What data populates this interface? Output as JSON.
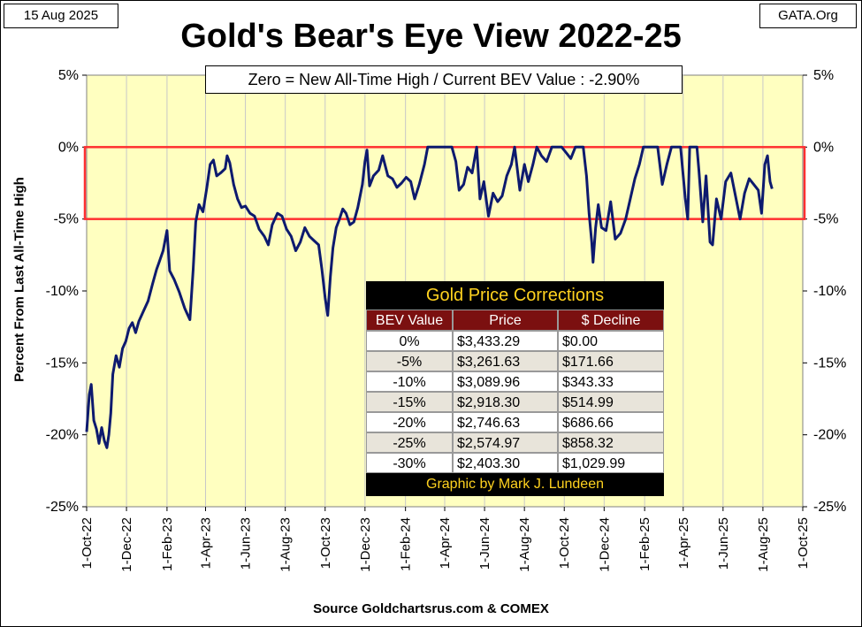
{
  "header": {
    "date": "15 Aug 2025",
    "source_site": "GATA.Org",
    "title": "Gold's Bear's Eye View 2022-25",
    "subtitle": "Zero = New All-Time High / Current  BEV Value : -2.90%"
  },
  "footer": {
    "source": "Source Goldchartsrus.com & COMEX"
  },
  "colors": {
    "plot_bg": "#FFFFC0",
    "line": "#0D1A6E",
    "band": "#FF3030",
    "table_head": "#7B1010",
    "table_text_gold": "#FFD21F"
  },
  "chart_data": {
    "type": "line",
    "title": "Gold's Bear's Eye View 2022-25",
    "ylabel": "Percent  From Last  All-Time  High",
    "xlabel": "",
    "ylim": [
      -25,
      5
    ],
    "yticks": [
      "5%",
      "0%",
      "-5%",
      "-10%",
      "-15%",
      "-20%",
      "-25%"
    ],
    "ytick_values": [
      5,
      0,
      -5,
      -10,
      -15,
      -20,
      -25
    ],
    "xticks": [
      "1-Oct-22",
      "1-Dec-22",
      "1-Feb-23",
      "1-Apr-23",
      "1-Jun-23",
      "1-Aug-23",
      "1-Oct-23",
      "1-Dec-23",
      "1-Feb-24",
      "1-Apr-24",
      "1-Jun-24",
      "1-Aug-24",
      "1-Oct-24",
      "1-Dec-24",
      "1-Feb-25",
      "1-Apr-25",
      "1-Jun-25",
      "1-Aug-25",
      "1-Oct-25"
    ],
    "xlim": [
      "2022-10-01",
      "2025-10-01"
    ],
    "highlight_band": [
      -5,
      0
    ],
    "grid": "vertical",
    "series": [
      {
        "points": [
          [
            "2022-10-01",
            -19.8
          ],
          [
            "2022-10-05",
            -17.2
          ],
          [
            "2022-10-08",
            -16.5
          ],
          [
            "2022-10-12",
            -19.0
          ],
          [
            "2022-10-16",
            -19.6
          ],
          [
            "2022-10-20",
            -20.6
          ],
          [
            "2022-10-24",
            -19.5
          ],
          [
            "2022-10-28",
            -20.4
          ],
          [
            "2022-11-01",
            -20.9
          ],
          [
            "2022-11-04",
            -20.0
          ],
          [
            "2022-11-07",
            -18.5
          ],
          [
            "2022-11-10",
            -15.8
          ],
          [
            "2022-11-15",
            -14.5
          ],
          [
            "2022-11-20",
            -15.3
          ],
          [
            "2022-11-25",
            -14.0
          ],
          [
            "2022-11-30",
            -13.5
          ],
          [
            "2022-12-05",
            -12.6
          ],
          [
            "2022-12-10",
            -12.2
          ],
          [
            "2022-12-15",
            -12.9
          ],
          [
            "2022-12-20",
            -12.1
          ],
          [
            "2022-12-27",
            -11.4
          ],
          [
            "2023-01-03",
            -10.7
          ],
          [
            "2023-01-10",
            -9.5
          ],
          [
            "2023-01-16",
            -8.5
          ],
          [
            "2023-01-20",
            -8.0
          ],
          [
            "2023-01-26",
            -7.2
          ],
          [
            "2023-02-01",
            -5.8
          ],
          [
            "2023-02-05",
            -8.6
          ],
          [
            "2023-02-12",
            -9.2
          ],
          [
            "2023-02-20",
            -10.1
          ],
          [
            "2023-02-28",
            -11.2
          ],
          [
            "2023-03-04",
            -11.6
          ],
          [
            "2023-03-08",
            -12.0
          ],
          [
            "2023-03-13",
            -8.5
          ],
          [
            "2023-03-17",
            -5.2
          ],
          [
            "2023-03-22",
            -4.0
          ],
          [
            "2023-03-28",
            -4.5
          ],
          [
            "2023-04-03",
            -2.8
          ],
          [
            "2023-04-08",
            -1.2
          ],
          [
            "2023-04-13",
            -0.9
          ],
          [
            "2023-04-18",
            -2.0
          ],
          [
            "2023-04-24",
            -1.8
          ],
          [
            "2023-05-01",
            -1.5
          ],
          [
            "2023-05-04",
            -0.6
          ],
          [
            "2023-05-08",
            -1.1
          ],
          [
            "2023-05-14",
            -2.6
          ],
          [
            "2023-05-20",
            -3.6
          ],
          [
            "2023-05-26",
            -4.2
          ],
          [
            "2023-06-01",
            -4.1
          ],
          [
            "2023-06-08",
            -4.6
          ],
          [
            "2023-06-15",
            -4.8
          ],
          [
            "2023-06-22",
            -5.7
          ],
          [
            "2023-06-30",
            -6.2
          ],
          [
            "2023-07-06",
            -6.8
          ],
          [
            "2023-07-12",
            -5.4
          ],
          [
            "2023-07-20",
            -4.6
          ],
          [
            "2023-07-27",
            -4.8
          ],
          [
            "2023-08-03",
            -5.7
          ],
          [
            "2023-08-10",
            -6.2
          ],
          [
            "2023-08-17",
            -7.2
          ],
          [
            "2023-08-24",
            -6.6
          ],
          [
            "2023-08-31",
            -5.6
          ],
          [
            "2023-09-07",
            -6.2
          ],
          [
            "2023-09-14",
            -6.5
          ],
          [
            "2023-09-21",
            -6.8
          ],
          [
            "2023-09-26",
            -8.5
          ],
          [
            "2023-10-01",
            -10.5
          ],
          [
            "2023-10-05",
            -11.7
          ],
          [
            "2023-10-09",
            -9.0
          ],
          [
            "2023-10-13",
            -7.0
          ],
          [
            "2023-10-18",
            -5.6
          ],
          [
            "2023-10-23",
            -5.0
          ],
          [
            "2023-10-28",
            -4.3
          ],
          [
            "2023-11-02",
            -4.6
          ],
          [
            "2023-11-08",
            -5.4
          ],
          [
            "2023-11-14",
            -5.2
          ],
          [
            "2023-11-20",
            -4.2
          ],
          [
            "2023-11-27",
            -2.6
          ],
          [
            "2023-12-01",
            -1.0
          ],
          [
            "2023-12-04",
            -0.2
          ],
          [
            "2023-12-08",
            -2.7
          ],
          [
            "2023-12-14",
            -2.0
          ],
          [
            "2023-12-22",
            -1.6
          ],
          [
            "2023-12-28",
            -0.6
          ],
          [
            "2024-01-05",
            -2.0
          ],
          [
            "2024-01-12",
            -2.2
          ],
          [
            "2024-01-19",
            -2.8
          ],
          [
            "2024-01-26",
            -2.5
          ],
          [
            "2024-02-02",
            -2.1
          ],
          [
            "2024-02-09",
            -2.4
          ],
          [
            "2024-02-15",
            -3.6
          ],
          [
            "2024-02-22",
            -2.6
          ],
          [
            "2024-03-01",
            -1.2
          ],
          [
            "2024-03-06",
            0.0
          ],
          [
            "2024-03-12",
            0.0
          ],
          [
            "2024-03-20",
            0.0
          ],
          [
            "2024-03-28",
            0.0
          ],
          [
            "2024-04-05",
            0.0
          ],
          [
            "2024-04-12",
            0.0
          ],
          [
            "2024-04-18",
            -1.0
          ],
          [
            "2024-04-23",
            -3.0
          ],
          [
            "2024-04-30",
            -2.6
          ],
          [
            "2024-05-06",
            -1.4
          ],
          [
            "2024-05-13",
            -1.8
          ],
          [
            "2024-05-20",
            0.0
          ],
          [
            "2024-05-25",
            -3.6
          ],
          [
            "2024-05-31",
            -2.4
          ],
          [
            "2024-06-07",
            -4.8
          ],
          [
            "2024-06-14",
            -3.2
          ],
          [
            "2024-06-21",
            -3.8
          ],
          [
            "2024-06-28",
            -3.4
          ],
          [
            "2024-07-05",
            -2.0
          ],
          [
            "2024-07-12",
            -1.2
          ],
          [
            "2024-07-17",
            0.0
          ],
          [
            "2024-07-25",
            -3.0
          ],
          [
            "2024-08-01",
            -1.2
          ],
          [
            "2024-08-07",
            -2.4
          ],
          [
            "2024-08-14",
            -1.2
          ],
          [
            "2024-08-20",
            0.0
          ],
          [
            "2024-08-27",
            -0.6
          ],
          [
            "2024-09-04",
            -1.0
          ],
          [
            "2024-09-12",
            0.0
          ],
          [
            "2024-09-20",
            0.0
          ],
          [
            "2024-09-27",
            0.0
          ],
          [
            "2024-10-04",
            -0.4
          ],
          [
            "2024-10-11",
            -0.8
          ],
          [
            "2024-10-18",
            0.0
          ],
          [
            "2024-10-25",
            0.0
          ],
          [
            "2024-10-30",
            0.0
          ],
          [
            "2024-11-04",
            -2.0
          ],
          [
            "2024-11-08",
            -4.6
          ],
          [
            "2024-11-12",
            -6.6
          ],
          [
            "2024-11-14",
            -8.0
          ],
          [
            "2024-11-18",
            -5.6
          ],
          [
            "2024-11-22",
            -4.0
          ],
          [
            "2024-11-27",
            -5.6
          ],
          [
            "2024-12-04",
            -5.8
          ],
          [
            "2024-12-11",
            -3.8
          ],
          [
            "2024-12-18",
            -6.4
          ],
          [
            "2024-12-26",
            -6.0
          ],
          [
            "2025-01-03",
            -5.0
          ],
          [
            "2025-01-10",
            -3.6
          ],
          [
            "2025-01-17",
            -2.2
          ],
          [
            "2025-01-24",
            -1.2
          ],
          [
            "2025-01-30",
            0.0
          ],
          [
            "2025-02-07",
            0.0
          ],
          [
            "2025-02-14",
            0.0
          ],
          [
            "2025-02-21",
            0.0
          ],
          [
            "2025-02-28",
            -2.6
          ],
          [
            "2025-03-07",
            -1.2
          ],
          [
            "2025-03-14",
            0.0
          ],
          [
            "2025-03-21",
            0.0
          ],
          [
            "2025-03-28",
            0.0
          ],
          [
            "2025-04-04",
            -3.5
          ],
          [
            "2025-04-08",
            -5.0
          ],
          [
            "2025-04-11",
            0.0
          ],
          [
            "2025-04-17",
            0.0
          ],
          [
            "2025-04-22",
            0.0
          ],
          [
            "2025-04-25",
            -1.6
          ],
          [
            "2025-05-01",
            -5.2
          ],
          [
            "2025-05-06",
            -2.0
          ],
          [
            "2025-05-12",
            -6.6
          ],
          [
            "2025-05-16",
            -6.8
          ],
          [
            "2025-05-22",
            -3.6
          ],
          [
            "2025-05-29",
            -5.0
          ],
          [
            "2025-06-05",
            -2.4
          ],
          [
            "2025-06-13",
            -1.8
          ],
          [
            "2025-06-20",
            -3.4
          ],
          [
            "2025-06-27",
            -5.0
          ],
          [
            "2025-07-04",
            -3.2
          ],
          [
            "2025-07-11",
            -2.2
          ],
          [
            "2025-07-18",
            -2.6
          ],
          [
            "2025-07-25",
            -3.0
          ],
          [
            "2025-07-30",
            -4.6
          ],
          [
            "2025-08-04",
            -1.2
          ],
          [
            "2025-08-08",
            -0.6
          ],
          [
            "2025-08-12",
            -2.4
          ],
          [
            "2025-08-15",
            -2.9
          ]
        ]
      }
    ]
  },
  "table": {
    "title": "Gold Price Corrections",
    "headers": [
      "BEV Value",
      "Price",
      "$ Decline"
    ],
    "rows": [
      [
        "0%",
        "$3,433.29",
        "$0.00"
      ],
      [
        "-5%",
        "$3,261.63",
        "$171.66"
      ],
      [
        "-10%",
        "$3,089.96",
        "$343.33"
      ],
      [
        "-15%",
        "$2,918.30",
        "$514.99"
      ],
      [
        "-20%",
        "$2,746.63",
        "$686.66"
      ],
      [
        "-25%",
        "$2,574.97",
        "$858.32"
      ],
      [
        "-30%",
        "$2,403.30",
        "$1,029.99"
      ]
    ],
    "footer": "Graphic by Mark J. Lundeen"
  }
}
